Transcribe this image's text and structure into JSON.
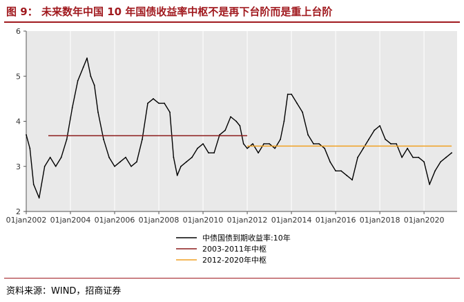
{
  "header": {
    "label": "图 9：",
    "title": "未来数年中国 10 年国债收益率中枢不是再下台阶而是重上台阶"
  },
  "source": "资料来源：WIND，招商证券",
  "colors": {
    "brand": "#a0191e",
    "series_yield": "#000000",
    "series_2003_2011": "#8b1a1a",
    "series_2012_2020": "#f0a020",
    "plot_bg": "#e9e9e9"
  },
  "chart_data": {
    "type": "line",
    "title": "",
    "xlabel": "",
    "ylabel": "",
    "ylim": [
      2,
      6
    ],
    "yticks": [
      "2",
      "3",
      "4",
      "5",
      "6"
    ],
    "xlim": [
      "2002-01-01",
      "2021-06-30"
    ],
    "xticks": [
      "01jan2002",
      "01jan2004",
      "01jan2006",
      "01jan2008",
      "01jan2010",
      "01jan2012",
      "01jan2014",
      "01jan2016",
      "01jan2018",
      "01jan2020"
    ],
    "grid": "vertical",
    "legend": "below",
    "series": [
      {
        "name": "中债国债到期收益率:10年",
        "color": "#000000",
        "x": [
          "2002-01",
          "2002-03",
          "2002-05",
          "2002-08",
          "2002-11",
          "2003-02",
          "2003-05",
          "2003-08",
          "2003-11",
          "2004-02",
          "2004-05",
          "2004-08",
          "2004-10",
          "2004-12",
          "2005-02",
          "2005-04",
          "2005-07",
          "2005-10",
          "2006-01",
          "2006-04",
          "2006-07",
          "2006-10",
          "2007-01",
          "2007-04",
          "2007-07",
          "2007-10",
          "2008-01",
          "2008-04",
          "2008-07",
          "2008-09",
          "2008-11",
          "2009-01",
          "2009-04",
          "2009-07",
          "2009-10",
          "2010-01",
          "2010-04",
          "2010-07",
          "2010-10",
          "2011-01",
          "2011-04",
          "2011-07",
          "2011-09",
          "2011-11",
          "2012-01",
          "2012-04",
          "2012-07",
          "2012-10",
          "2013-01",
          "2013-04",
          "2013-07",
          "2013-09",
          "2013-11",
          "2014-01",
          "2014-04",
          "2014-07",
          "2014-10",
          "2015-01",
          "2015-04",
          "2015-07",
          "2015-10",
          "2016-01",
          "2016-04",
          "2016-07",
          "2016-10",
          "2017-01",
          "2017-04",
          "2017-07",
          "2017-10",
          "2018-01",
          "2018-04",
          "2018-07",
          "2018-10",
          "2019-01",
          "2019-04",
          "2019-07",
          "2019-10",
          "2020-01",
          "2020-04",
          "2020-07",
          "2020-10",
          "2021-01",
          "2021-04"
        ],
        "y": [
          3.7,
          3.4,
          2.6,
          2.3,
          3.0,
          3.2,
          3.0,
          3.2,
          3.6,
          4.3,
          4.9,
          5.2,
          5.4,
          5.0,
          4.8,
          4.2,
          3.6,
          3.2,
          3.0,
          3.1,
          3.2,
          3.0,
          3.1,
          3.6,
          4.4,
          4.5,
          4.4,
          4.4,
          4.2,
          3.2,
          2.8,
          3.0,
          3.1,
          3.2,
          3.4,
          3.5,
          3.3,
          3.3,
          3.7,
          3.8,
          4.1,
          4.0,
          3.9,
          3.5,
          3.4,
          3.5,
          3.3,
          3.5,
          3.5,
          3.4,
          3.6,
          4.0,
          4.6,
          4.6,
          4.4,
          4.2,
          3.7,
          3.5,
          3.5,
          3.4,
          3.1,
          2.9,
          2.9,
          2.8,
          2.7,
          3.2,
          3.4,
          3.6,
          3.8,
          3.9,
          3.6,
          3.5,
          3.5,
          3.2,
          3.4,
          3.2,
          3.2,
          3.1,
          2.6,
          2.9,
          3.1,
          3.2,
          3.3
        ]
      },
      {
        "name": "2003-2011年中枢",
        "color": "#8b1a1a",
        "x": [
          "2003-01",
          "2012-01"
        ],
        "y": [
          3.68,
          3.68
        ]
      },
      {
        "name": "2012-2020年中枢",
        "color": "#f0a020",
        "x": [
          "2012-01",
          "2021-04"
        ],
        "y": [
          3.45,
          3.45
        ]
      }
    ]
  }
}
